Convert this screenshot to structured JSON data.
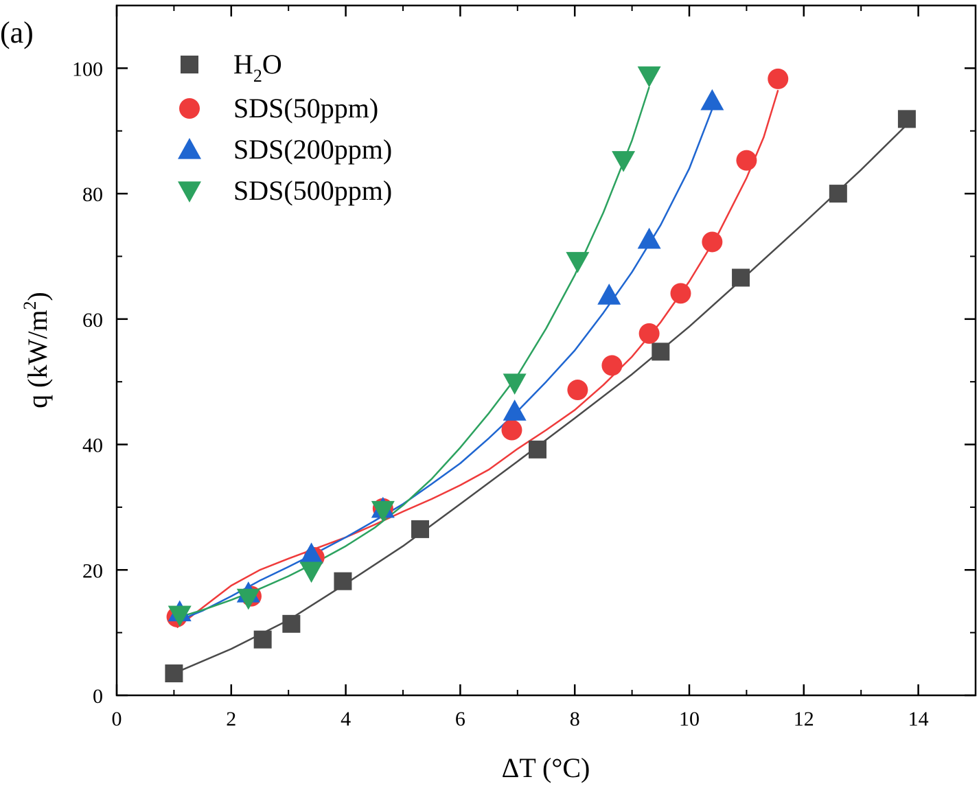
{
  "chart_data": {
    "type": "scatter",
    "panel_label": "(a)",
    "xlabel": "ΔT (°C)",
    "ylabel": {
      "base": "q (kW/m",
      "sup": "2",
      "close": ")"
    },
    "xlim": [
      0,
      15
    ],
    "ylim": [
      0,
      110
    ],
    "xticks": [
      "0",
      "2",
      "4",
      "6",
      "8",
      "10",
      "12",
      "14"
    ],
    "yticks": [
      "0",
      "20",
      "40",
      "60",
      "80",
      "100"
    ],
    "legend_position": "top-left",
    "series": [
      {
        "name": "H2O",
        "label": {
          "base": "H",
          "sub": "2",
          "rest": "O"
        },
        "marker": "square",
        "color": "#4a4a4a",
        "points": [
          [
            1.0,
            3.5
          ],
          [
            2.55,
            8.9
          ],
          [
            3.05,
            11.4
          ],
          [
            3.95,
            18.2
          ],
          [
            5.3,
            26.5
          ],
          [
            7.35,
            39.2
          ],
          [
            9.5,
            54.8
          ],
          [
            10.9,
            66.6
          ],
          [
            12.6,
            80.0
          ],
          [
            13.8,
            91.9
          ]
        ],
        "fit": [
          [
            1.0,
            3.5
          ],
          [
            2.0,
            7.4
          ],
          [
            3.0,
            12.0
          ],
          [
            4.0,
            17.8
          ],
          [
            5.0,
            23.8
          ],
          [
            6.0,
            30.5
          ],
          [
            7.0,
            37.3
          ],
          [
            8.0,
            44.2
          ],
          [
            9.0,
            51.2
          ],
          [
            10.0,
            58.8
          ],
          [
            11.0,
            67.0
          ],
          [
            12.0,
            75.3
          ],
          [
            13.0,
            83.8
          ],
          [
            13.8,
            91.0
          ]
        ]
      },
      {
        "name": "SDS(50ppm)",
        "label": {
          "base": "SDS(50ppm)",
          "sub": "",
          "rest": ""
        },
        "marker": "circle",
        "color": "#ef3b3b",
        "points": [
          [
            1.05,
            12.5
          ],
          [
            2.35,
            15.8
          ],
          [
            3.45,
            22.0
          ],
          [
            4.65,
            29.8
          ],
          [
            6.9,
            42.3
          ],
          [
            8.05,
            48.7
          ],
          [
            8.65,
            52.6
          ],
          [
            9.3,
            57.7
          ],
          [
            9.85,
            64.1
          ],
          [
            10.4,
            72.3
          ],
          [
            11.0,
            85.3
          ],
          [
            11.55,
            98.3
          ]
        ],
        "fit": [
          [
            1.05,
            10.8
          ],
          [
            1.5,
            14.0
          ],
          [
            2.0,
            17.5
          ],
          [
            2.5,
            20.0
          ],
          [
            3.0,
            21.8
          ],
          [
            3.5,
            23.5
          ],
          [
            4.0,
            25.2
          ],
          [
            4.5,
            27.2
          ],
          [
            5.0,
            29.3
          ],
          [
            5.5,
            31.3
          ],
          [
            6.0,
            33.5
          ],
          [
            6.5,
            36.0
          ],
          [
            7.0,
            39.3
          ],
          [
            7.5,
            42.3
          ],
          [
            8.0,
            45.5
          ],
          [
            8.5,
            49.5
          ],
          [
            9.0,
            54.0
          ],
          [
            9.5,
            59.5
          ],
          [
            10.0,
            66.0
          ],
          [
            10.5,
            73.5
          ],
          [
            11.0,
            82.5
          ],
          [
            11.3,
            89.0
          ],
          [
            11.55,
            96.5
          ]
        ]
      },
      {
        "name": "SDS(200ppm)",
        "label": {
          "base": "SDS(200ppm)",
          "sub": "",
          "rest": ""
        },
        "marker": "triangle-up",
        "color": "#1f66d1",
        "points": [
          [
            1.1,
            13.3
          ],
          [
            2.3,
            16.3
          ],
          [
            3.4,
            22.5
          ],
          [
            4.65,
            29.8
          ],
          [
            6.95,
            45.3
          ],
          [
            8.6,
            63.8
          ],
          [
            9.3,
            72.7
          ],
          [
            10.4,
            94.8
          ]
        ],
        "fit": [
          [
            1.1,
            12.0
          ],
          [
            1.5,
            13.5
          ],
          [
            2.0,
            15.8
          ],
          [
            2.5,
            18.3
          ],
          [
            3.0,
            20.5
          ],
          [
            3.5,
            22.8
          ],
          [
            4.0,
            25.2
          ],
          [
            4.5,
            27.8
          ],
          [
            5.0,
            30.5
          ],
          [
            5.5,
            33.7
          ],
          [
            6.0,
            37.0
          ],
          [
            6.5,
            41.0
          ],
          [
            7.0,
            45.3
          ],
          [
            7.5,
            50.0
          ],
          [
            8.0,
            55.0
          ],
          [
            8.5,
            61.0
          ],
          [
            9.0,
            67.5
          ],
          [
            9.5,
            75.0
          ],
          [
            10.0,
            84.0
          ],
          [
            10.4,
            93.5
          ]
        ]
      },
      {
        "name": "SDS(500ppm)",
        "label": {
          "base": "SDS(500ppm)",
          "sub": "",
          "rest": ""
        },
        "marker": "triangle-down",
        "color": "#2ca25f",
        "points": [
          [
            1.1,
            12.8
          ],
          [
            2.3,
            15.5
          ],
          [
            3.4,
            19.8
          ],
          [
            4.65,
            29.5
          ],
          [
            6.95,
            49.8
          ],
          [
            8.05,
            69.2
          ],
          [
            8.85,
            85.3
          ],
          [
            9.3,
            98.8
          ]
        ],
        "fit": [
          [
            1.1,
            12.5
          ],
          [
            1.5,
            13.6
          ],
          [
            2.0,
            15.2
          ],
          [
            2.5,
            17.0
          ],
          [
            3.0,
            19.0
          ],
          [
            3.5,
            21.3
          ],
          [
            4.0,
            23.8
          ],
          [
            4.5,
            26.7
          ],
          [
            5.0,
            30.3
          ],
          [
            5.5,
            34.5
          ],
          [
            6.0,
            39.5
          ],
          [
            6.5,
            45.0
          ],
          [
            7.0,
            51.0
          ],
          [
            7.5,
            58.5
          ],
          [
            8.0,
            67.0
          ],
          [
            8.5,
            77.0
          ],
          [
            9.0,
            88.5
          ],
          [
            9.3,
            97.0
          ]
        ]
      }
    ]
  }
}
